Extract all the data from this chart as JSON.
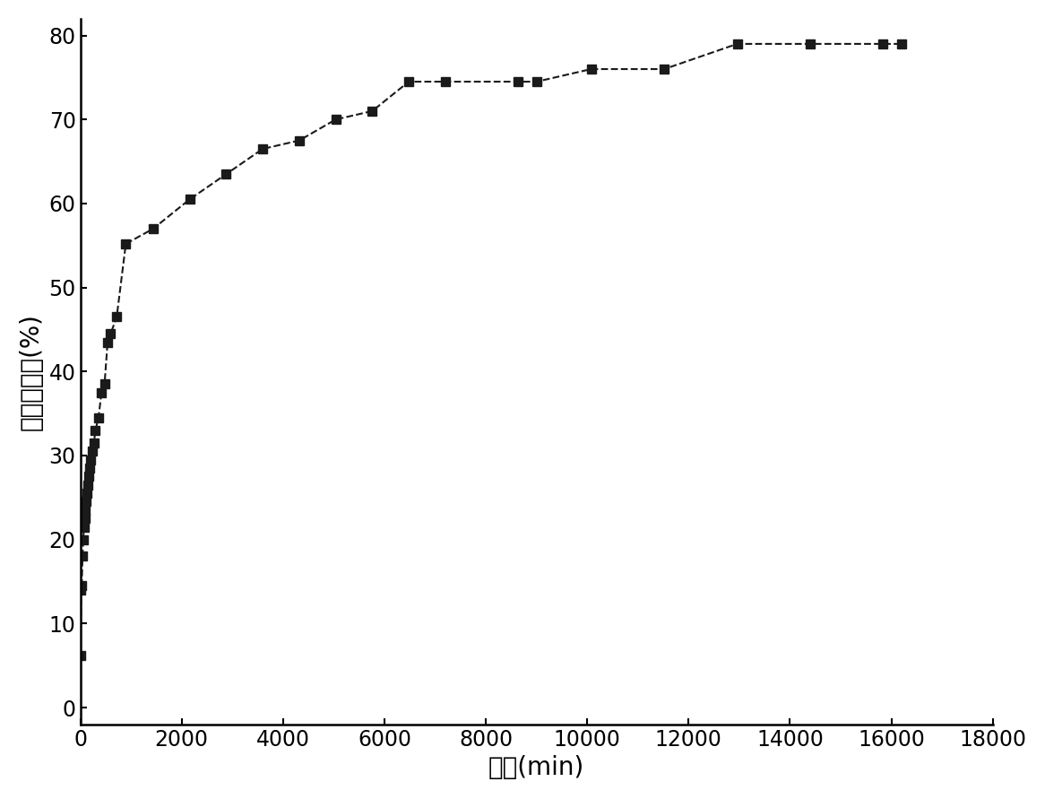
{
  "x": [
    5,
    15,
    30,
    45,
    60,
    75,
    90,
    105,
    120,
    135,
    150,
    165,
    180,
    210,
    240,
    270,
    300,
    360,
    420,
    480,
    540,
    600,
    720,
    900,
    1440,
    2160,
    2880,
    3600,
    4320,
    5040,
    5760,
    6480,
    7200,
    8640,
    9000,
    10080,
    11520,
    12960,
    14400,
    15840,
    16200
  ],
  "y": [
    6.2,
    14.0,
    14.5,
    18.0,
    20.0,
    21.5,
    22.5,
    23.5,
    24.5,
    25.5,
    26.5,
    27.5,
    28.5,
    29.5,
    30.5,
    31.5,
    33.0,
    34.5,
    37.5,
    38.5,
    43.5,
    44.5,
    46.5,
    55.2,
    57.0,
    60.5,
    63.5,
    66.5,
    67.5,
    70.0,
    71.0,
    74.5,
    74.5,
    74.5,
    74.5,
    76.0,
    76.0,
    79.0,
    79.0,
    79.0,
    79.0
  ],
  "xlabel": "时间(min)",
  "ylabel": "药物释放量(%)",
  "xlim": [
    0,
    18000
  ],
  "ylim": [
    -2,
    82
  ],
  "xticks": [
    0,
    2000,
    4000,
    6000,
    8000,
    10000,
    12000,
    14000,
    16000,
    18000
  ],
  "yticks": [
    0,
    10,
    20,
    30,
    40,
    50,
    60,
    70,
    80
  ],
  "line_color": "#1a1a1a",
  "marker": "s",
  "markersize": 7,
  "linewidth": 1.5,
  "linestyle": "--",
  "background_color": "#ffffff",
  "xlabel_fontsize": 20,
  "ylabel_fontsize": 20,
  "tick_fontsize": 17
}
